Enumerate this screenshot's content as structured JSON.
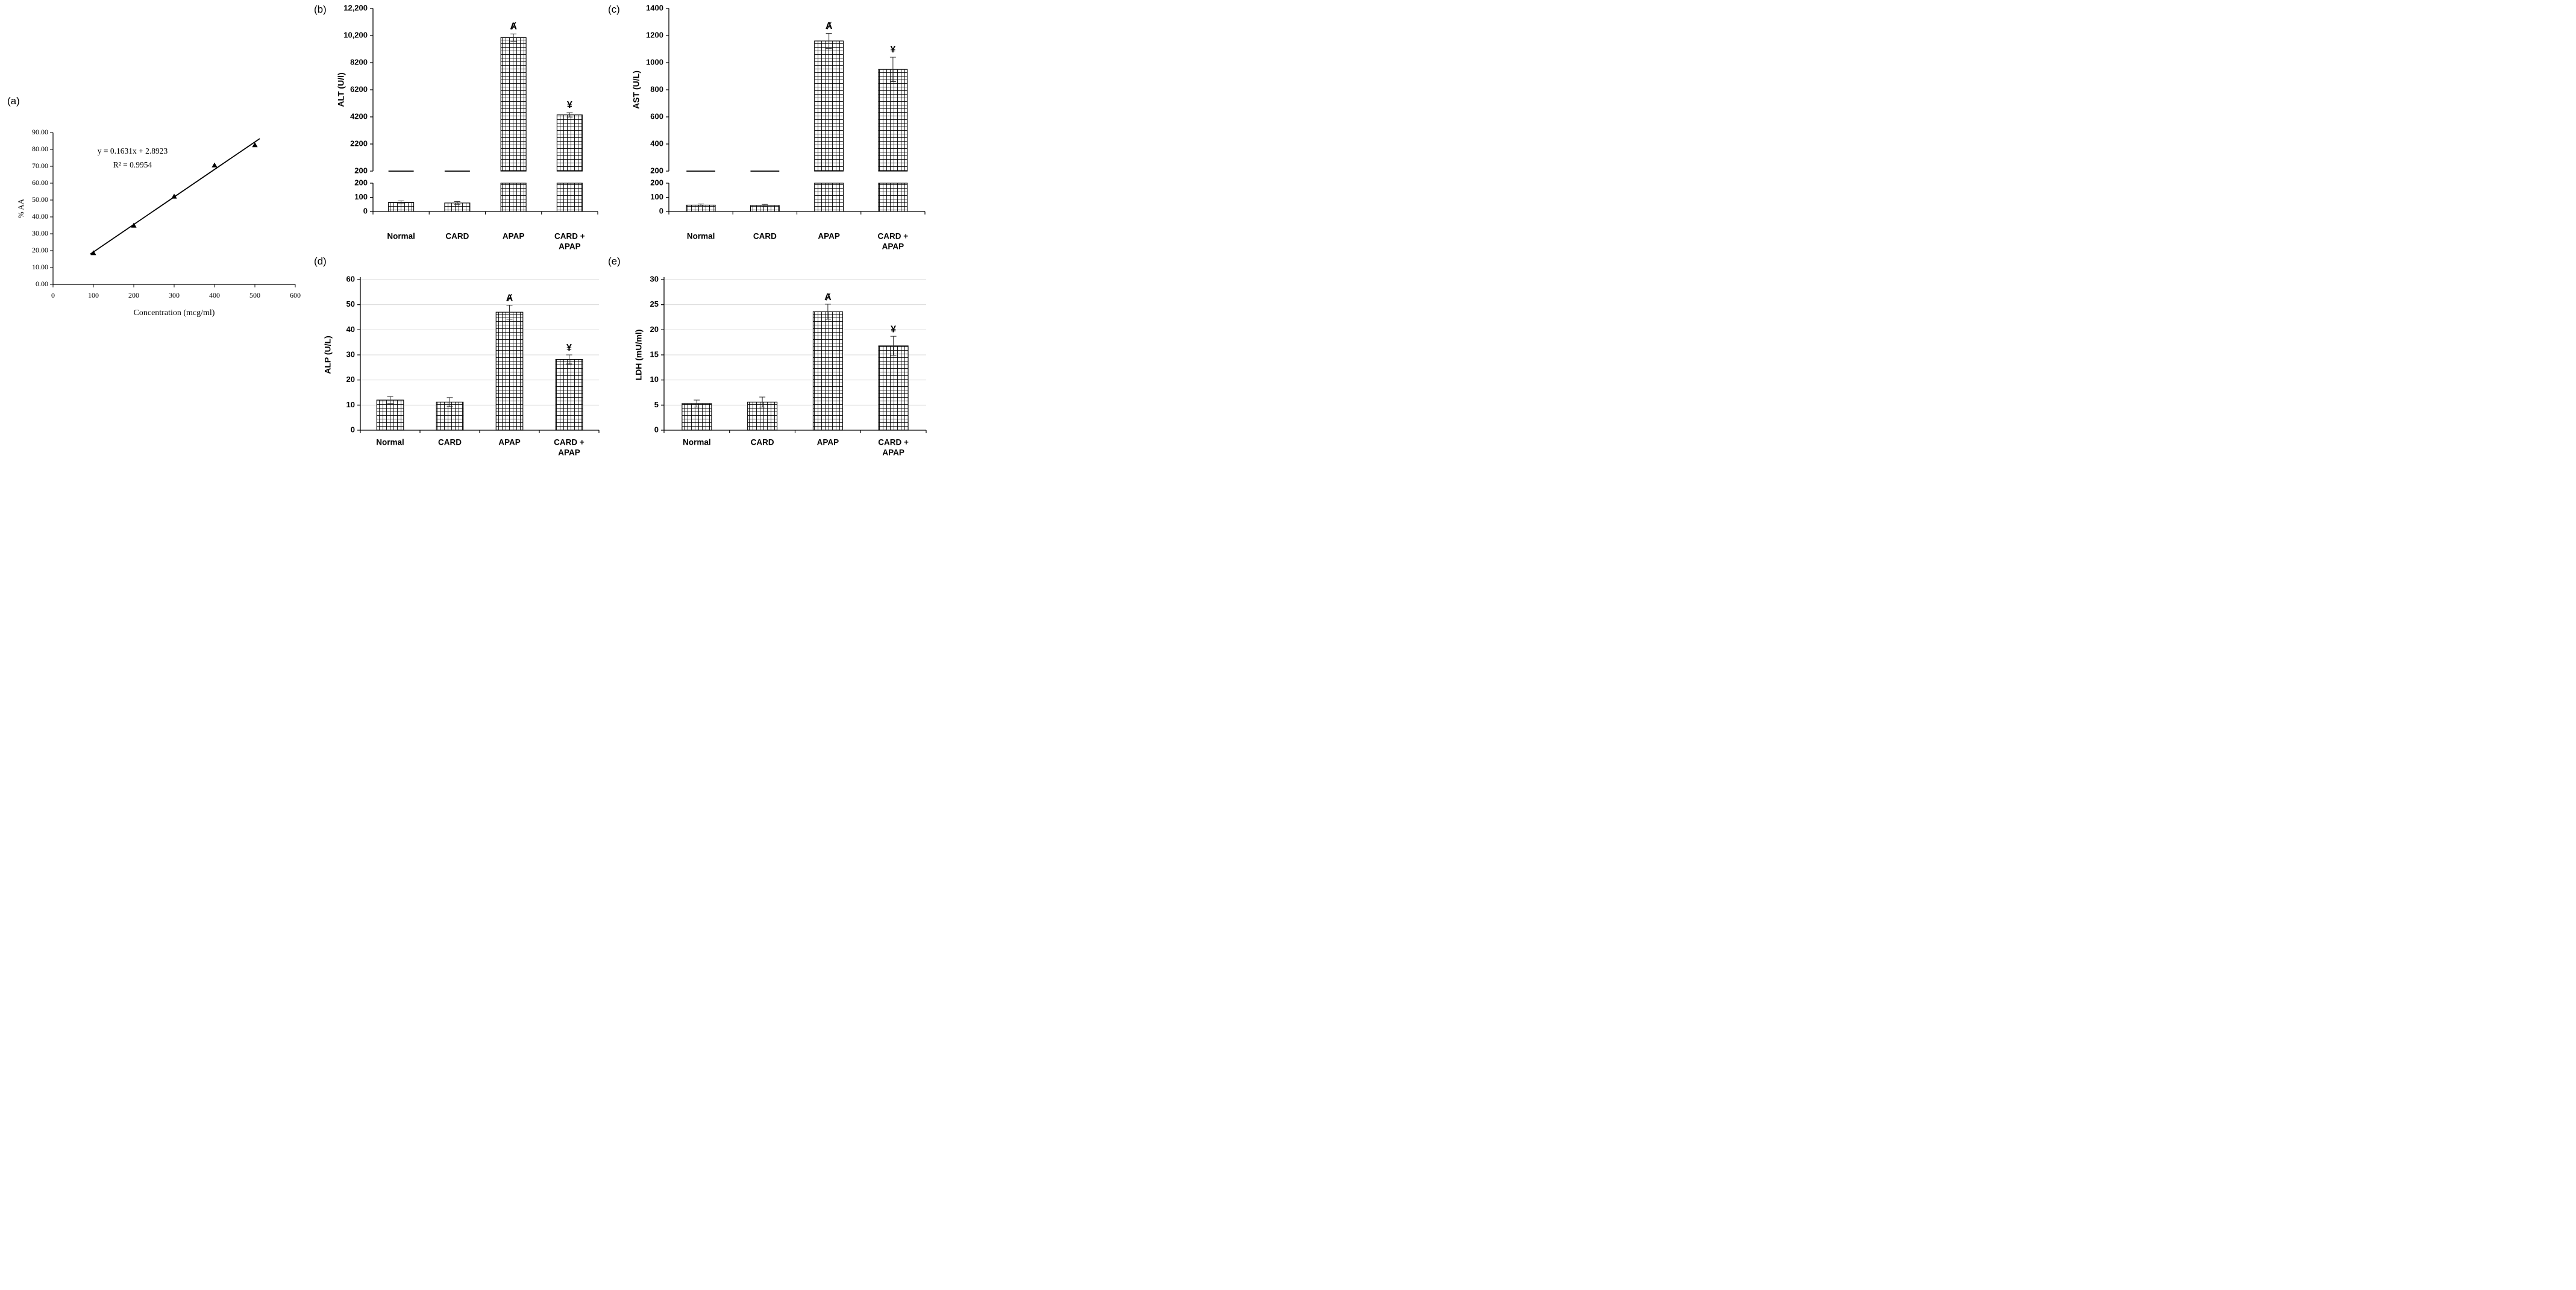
{
  "panels": [
    {
      "id": "a",
      "label": "(a)"
    },
    {
      "id": "b",
      "label": "(b)"
    },
    {
      "id": "c",
      "label": "(c)"
    },
    {
      "id": "d",
      "label": "(d)"
    },
    {
      "id": "e",
      "label": "(e)"
    }
  ],
  "chart_data": [
    {
      "panel": "a",
      "type": "scatter",
      "title": "",
      "x": [
        100,
        200,
        300,
        400,
        500
      ],
      "y": [
        18.5,
        34.8,
        52.0,
        70.5,
        82.5
      ],
      "trendline": {
        "equation": "y = 0.1631x + 2.8923",
        "r_squared": "R² = 0.9954",
        "slope": 0.1631,
        "intercept": 2.8923
      },
      "xlabel": "Concentration (mcg/ml)",
      "ylabel": "% AA",
      "xlim": [
        0,
        600
      ],
      "ylim": [
        0,
        90
      ],
      "xticks": [
        0,
        100,
        200,
        300,
        400,
        500,
        600
      ],
      "ytick_labels": [
        "0.00",
        "10.00",
        "20.00",
        "30.00",
        "40.00",
        "50.00",
        "60.00",
        "70.00",
        "80.00",
        "90.00"
      ],
      "marker": "filled-triangle",
      "grid": false
    },
    {
      "panel": "b",
      "type": "bar_broken_axis",
      "ylabel": "ALT (U/l)",
      "categories": [
        "Normal",
        "CARD",
        "APAP",
        "CARD +\nAPAP"
      ],
      "values": [
        65,
        60,
        10050,
        4350
      ],
      "errors": [
        10,
        10,
        270,
        160
      ],
      "annotations": [
        "",
        "",
        "Ⱥ",
        "¥"
      ],
      "upper_axis": {
        "ylim": [
          200,
          12200
        ],
        "ytick_labels": [
          "200",
          "2200",
          "4200",
          "6200",
          "8200",
          "10,200",
          "12,200"
        ]
      },
      "lower_axis": {
        "ylim": [
          0,
          200
        ],
        "ytick_labels": [
          "0",
          "100",
          "200"
        ]
      },
      "bar_style": "white-grid-hatch",
      "grid": false
    },
    {
      "panel": "c",
      "type": "bar_broken_axis",
      "ylabel": "AST (U/L)",
      "categories": [
        "Normal",
        "CARD",
        "APAP",
        "CARD +\nAPAP"
      ],
      "values": [
        45,
        42,
        1160,
        950
      ],
      "errors": [
        8,
        8,
        55,
        90
      ],
      "annotations": [
        "",
        "",
        "Ⱥ",
        "¥"
      ],
      "upper_axis": {
        "ylim": [
          200,
          1400
        ],
        "ytick_labels": [
          "200",
          "400",
          "600",
          "800",
          "1000",
          "1200",
          "1400"
        ]
      },
      "lower_axis": {
        "ylim": [
          0,
          200
        ],
        "ytick_labels": [
          "0",
          "100",
          "200"
        ]
      },
      "bar_style": "white-grid-hatch",
      "grid": false
    },
    {
      "panel": "d",
      "type": "bar",
      "ylabel": "ALP (U/L)",
      "categories": [
        "Normal",
        "CARD",
        "APAP",
        "CARD +\nAPAP"
      ],
      "values": [
        12,
        11.2,
        47,
        28.2
      ],
      "errors": [
        1.4,
        1.8,
        2.8,
        1.8
      ],
      "annotations": [
        "",
        "",
        "Ⱥ",
        "¥"
      ],
      "ylim": [
        0,
        60
      ],
      "yticks": [
        0,
        10,
        20,
        30,
        40,
        50,
        60
      ],
      "bar_style": "white-grid-hatch",
      "grid": true
    },
    {
      "panel": "e",
      "type": "bar",
      "ylabel": "LDH (mU/ml)",
      "categories": [
        "Normal",
        "CARD",
        "APAP",
        "CARD +\nAPAP"
      ],
      "values": [
        5.3,
        5.6,
        23.6,
        16.8
      ],
      "errors": [
        0.7,
        1.0,
        1.5,
        1.9
      ],
      "annotations": [
        "",
        "",
        "Ⱥ",
        "¥"
      ],
      "ylim": [
        0,
        30
      ],
      "yticks": [
        0,
        5,
        10,
        15,
        20,
        25,
        30
      ],
      "bar_style": "white-grid-hatch",
      "grid": true
    }
  ],
  "colors": {
    "bar_fill": "#ffffff",
    "bar_hatch": "#000000",
    "gridline": "#d9d9d9",
    "axis": "#000000",
    "text": "#000000",
    "error_bar": "#2b2b2b"
  }
}
